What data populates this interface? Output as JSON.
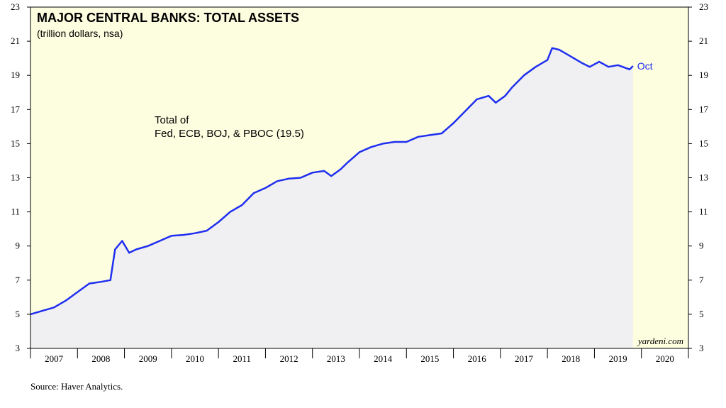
{
  "chart_data": {
    "type": "line",
    "title": "MAJOR CENTRAL BANKS: TOTAL ASSETS",
    "subtitle": "(trillion dollars, nsa)",
    "annotation": [
      "Total of",
      "Fed, ECB, BOJ, & PBOC (19.5)"
    ],
    "end_label": "Oct",
    "watermark": "yardeni.com",
    "source": "Source: Haver Analytics.",
    "color": "#1f2ff0",
    "x": [
      2007.0,
      2007.25,
      2007.5,
      2007.75,
      2008.0,
      2008.25,
      2008.5,
      2008.7,
      2008.8,
      2008.95,
      2009.1,
      2009.25,
      2009.5,
      2009.75,
      2010.0,
      2010.25,
      2010.5,
      2010.75,
      2011.0,
      2011.25,
      2011.5,
      2011.75,
      2012.0,
      2012.25,
      2012.5,
      2012.75,
      2013.0,
      2013.25,
      2013.4,
      2013.6,
      2013.75,
      2014.0,
      2014.25,
      2014.5,
      2014.75,
      2015.0,
      2015.25,
      2015.5,
      2015.75,
      2016.0,
      2016.25,
      2016.5,
      2016.75,
      2016.9,
      2017.1,
      2017.25,
      2017.5,
      2017.75,
      2018.0,
      2018.1,
      2018.25,
      2018.5,
      2018.75,
      2018.9,
      2019.1,
      2019.3,
      2019.5,
      2019.75,
      2019.82
    ],
    "values": [
      5.0,
      5.2,
      5.4,
      5.8,
      6.3,
      6.8,
      6.9,
      7.0,
      8.8,
      9.3,
      8.6,
      8.8,
      9.0,
      9.3,
      9.6,
      9.65,
      9.75,
      9.9,
      10.4,
      11.0,
      11.4,
      12.1,
      12.4,
      12.8,
      12.95,
      13.0,
      13.3,
      13.4,
      13.1,
      13.5,
      13.9,
      14.5,
      14.8,
      15.0,
      15.1,
      15.1,
      15.4,
      15.5,
      15.6,
      16.2,
      16.9,
      17.6,
      17.8,
      17.4,
      17.8,
      18.3,
      19.0,
      19.5,
      19.9,
      20.6,
      20.5,
      20.1,
      19.7,
      19.5,
      19.8,
      19.5,
      19.6,
      19.35,
      19.55
    ],
    "xlim": [
      2007,
      2021
    ],
    "xticks": [
      2007,
      2008,
      2009,
      2010,
      2011,
      2012,
      2013,
      2014,
      2015,
      2016,
      2017,
      2018,
      2019,
      2020
    ],
    "ylim": [
      3,
      23
    ],
    "yticks": [
      3,
      5,
      7,
      9,
      11,
      13,
      15,
      17,
      19,
      21,
      23
    ]
  }
}
